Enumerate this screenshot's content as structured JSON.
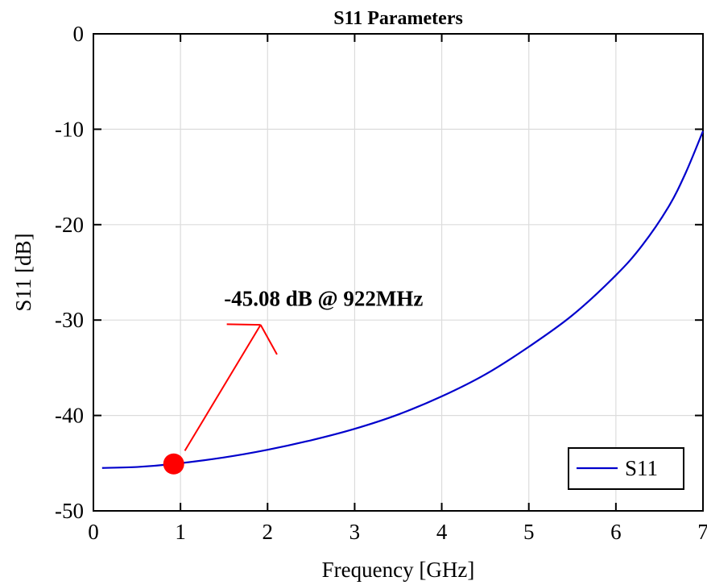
{
  "chart_data": {
    "type": "line",
    "title": "S11 Parameters",
    "xlabel": "Frequency [GHz]",
    "ylabel": "S11 [dB]",
    "xlim": [
      0,
      7
    ],
    "ylim": [
      -50,
      0
    ],
    "xticks": [
      0,
      1,
      2,
      3,
      4,
      5,
      6,
      7
    ],
    "yticks": [
      0,
      -10,
      -20,
      -30,
      -40,
      -50
    ],
    "grid": true,
    "legend_position": "bottom-right",
    "series": [
      {
        "name": "S11",
        "color": "#0000cc",
        "x": [
          0.1,
          0.5,
          0.922,
          1.5,
          2.0,
          2.5,
          3.0,
          3.5,
          4.0,
          4.5,
          5.0,
          5.5,
          6.0,
          6.3,
          6.6,
          6.8,
          7.0
        ],
        "y": [
          -45.5,
          -45.4,
          -45.08,
          -44.4,
          -43.6,
          -42.6,
          -41.4,
          -39.9,
          -38.0,
          -35.7,
          -32.8,
          -29.5,
          -25.3,
          -22.2,
          -18.2,
          -14.6,
          -10.2
        ]
      }
    ],
    "marker": {
      "x": 0.922,
      "y": -45.08,
      "color": "#ff0000"
    },
    "annotation": {
      "text": "-45.08 dB  @ 922MHz",
      "x": 1.5,
      "y": -28.5,
      "arrow_from": [
        1.05,
        -43.7
      ],
      "arrow_to": [
        1.92,
        -30.5
      ],
      "arrow_color": "#ff0000"
    }
  }
}
